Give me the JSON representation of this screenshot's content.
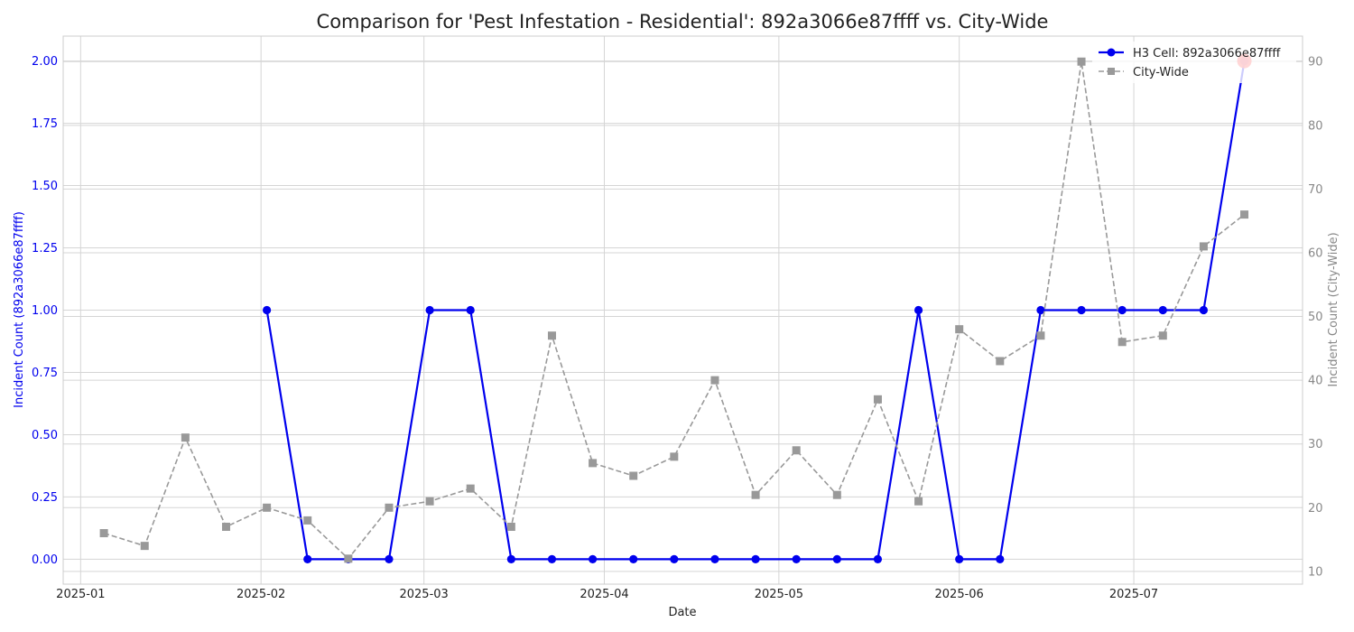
{
  "chart_data": {
    "type": "line",
    "title": "Comparison for 'Pest Infestation - Residential': 892a3066e87ffff vs. City-Wide",
    "xlabel": "Date",
    "ylabel_left": "Incident Count (892a3066e87ffff)",
    "ylabel_right": "Incident Count (City-Wide)",
    "xlim": [
      "2024-12-29",
      "2025-07-30"
    ],
    "ylim_left": [
      -0.1,
      2.1
    ],
    "ylim_right": [
      8,
      94
    ],
    "x_ticks": [
      "2025-01",
      "2025-02",
      "2025-03",
      "2025-04",
      "2025-05",
      "2025-06",
      "2025-07"
    ],
    "y_ticks_left": [
      "0.00",
      "0.25",
      "0.50",
      "0.75",
      "1.00",
      "1.25",
      "1.50",
      "1.75",
      "2.00"
    ],
    "y_ticks_right": [
      "10",
      "20",
      "30",
      "40",
      "50",
      "60",
      "70",
      "80",
      "90"
    ],
    "grid": true,
    "legend_position": "top-right",
    "series": [
      {
        "name": "H3 Cell: 892a3066e87ffff",
        "axis": "left",
        "color": "#0000ee",
        "style": "solid",
        "marker": "circle",
        "x": [
          "2025-02-02",
          "2025-02-09",
          "2025-02-16",
          "2025-02-23",
          "2025-03-02",
          "2025-03-09",
          "2025-03-16",
          "2025-03-23",
          "2025-03-30",
          "2025-04-06",
          "2025-04-13",
          "2025-04-20",
          "2025-04-27",
          "2025-05-04",
          "2025-05-11",
          "2025-05-18",
          "2025-05-25",
          "2025-06-01",
          "2025-06-08",
          "2025-06-15",
          "2025-06-22",
          "2025-06-29",
          "2025-07-06",
          "2025-07-13",
          "2025-07-20"
        ],
        "values": [
          1,
          0,
          0,
          0,
          1,
          1,
          0,
          0,
          0,
          0,
          0,
          0,
          0,
          0,
          0,
          0,
          1,
          0,
          0,
          1,
          1,
          1,
          1,
          1,
          2
        ]
      },
      {
        "name": "City-Wide",
        "axis": "right",
        "color": "#999999",
        "style": "dashed",
        "marker": "square",
        "x": [
          "2025-01-05",
          "2025-01-12",
          "2025-01-19",
          "2025-01-26",
          "2025-02-02",
          "2025-02-09",
          "2025-02-16",
          "2025-02-23",
          "2025-03-02",
          "2025-03-09",
          "2025-03-16",
          "2025-03-23",
          "2025-03-30",
          "2025-04-06",
          "2025-04-13",
          "2025-04-20",
          "2025-04-27",
          "2025-05-04",
          "2025-05-11",
          "2025-05-18",
          "2025-05-25",
          "2025-06-01",
          "2025-06-08",
          "2025-06-15",
          "2025-06-22",
          "2025-06-29",
          "2025-07-06",
          "2025-07-13",
          "2025-07-20"
        ],
        "values": [
          16,
          14,
          31,
          17,
          20,
          18,
          12,
          20,
          21,
          23,
          17,
          47,
          27,
          25,
          28,
          40,
          22,
          29,
          22,
          37,
          21,
          48,
          43,
          47,
          90,
          46,
          47,
          61,
          66
        ]
      }
    ],
    "highlight": {
      "series": "H3 Cell: 892a3066e87ffff",
      "x": "2025-07-20",
      "value": 2,
      "color": "#ff2222"
    }
  }
}
